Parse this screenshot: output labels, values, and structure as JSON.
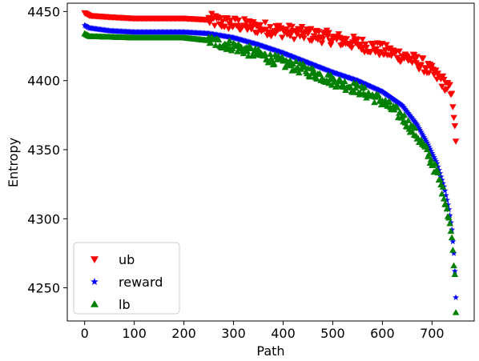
{
  "chart_data": {
    "type": "scatter",
    "title": "",
    "xlabel": "Path",
    "ylabel": "Entropy",
    "xlim": [
      -35,
      785
    ],
    "ylim": [
      4226,
      4456
    ],
    "xticks": [
      0,
      100,
      200,
      300,
      400,
      500,
      600,
      700
    ],
    "yticks": [
      4250,
      4300,
      4350,
      4400,
      4450
    ],
    "grid": false,
    "legend_position": "lower-left",
    "x_range_points": [
      0,
      748
    ],
    "series": [
      {
        "name": "ub",
        "marker": "triangle-down",
        "color": "#ff0000",
        "anchors": [
          [
            0,
            4449
          ],
          [
            10,
            4447
          ],
          [
            50,
            4446
          ],
          [
            100,
            4445
          ],
          [
            150,
            4445
          ],
          [
            200,
            4445
          ],
          [
            250,
            4444
          ],
          [
            280,
            4442
          ],
          [
            320,
            4440
          ],
          [
            360,
            4438
          ],
          [
            400,
            4436
          ],
          [
            440,
            4434
          ],
          [
            480,
            4432
          ],
          [
            520,
            4429
          ],
          [
            560,
            4426
          ],
          [
            600,
            4422
          ],
          [
            640,
            4418
          ],
          [
            680,
            4412
          ],
          [
            700,
            4406
          ],
          [
            720,
            4400
          ],
          [
            735,
            4394
          ],
          [
            742,
            4384
          ],
          [
            746,
            4370
          ],
          [
            748,
            4352
          ]
        ],
        "scatter_from_x": 250,
        "scatter_amplitude": 5
      },
      {
        "name": "reward",
        "marker": "star",
        "color": "#0000ff",
        "anchors": [
          [
            0,
            4440
          ],
          [
            10,
            4438
          ],
          [
            50,
            4436
          ],
          [
            100,
            4435
          ],
          [
            200,
            4435
          ],
          [
            250,
            4434
          ],
          [
            300,
            4431
          ],
          [
            350,
            4426
          ],
          [
            400,
            4420
          ],
          [
            450,
            4413
          ],
          [
            500,
            4406
          ],
          [
            550,
            4400
          ],
          [
            600,
            4392
          ],
          [
            640,
            4382
          ],
          [
            670,
            4368
          ],
          [
            690,
            4355
          ],
          [
            710,
            4340
          ],
          [
            725,
            4322
          ],
          [
            735,
            4305
          ],
          [
            740,
            4292
          ],
          [
            744,
            4275
          ],
          [
            746,
            4262
          ],
          [
            748,
            4243
          ]
        ],
        "scatter_from_x": 9999,
        "scatter_amplitude": 0
      },
      {
        "name": "lb",
        "marker": "triangle-up",
        "color": "#008000",
        "anchors": [
          [
            0,
            4434
          ],
          [
            10,
            4432
          ],
          [
            100,
            4431
          ],
          [
            200,
            4431
          ],
          [
            250,
            4429
          ],
          [
            300,
            4425
          ],
          [
            350,
            4419
          ],
          [
            400,
            4413
          ],
          [
            450,
            4407
          ],
          [
            500,
            4400
          ],
          [
            550,
            4394
          ],
          [
            600,
            4385
          ],
          [
            640,
            4374
          ],
          [
            670,
            4360
          ],
          [
            690,
            4348
          ],
          [
            710,
            4333
          ],
          [
            725,
            4316
          ],
          [
            735,
            4300
          ],
          [
            740,
            4284
          ],
          [
            744,
            4270
          ],
          [
            746,
            4257
          ],
          [
            748,
            4236
          ]
        ],
        "scatter_from_x": 250,
        "scatter_amplitude": 4
      }
    ]
  }
}
